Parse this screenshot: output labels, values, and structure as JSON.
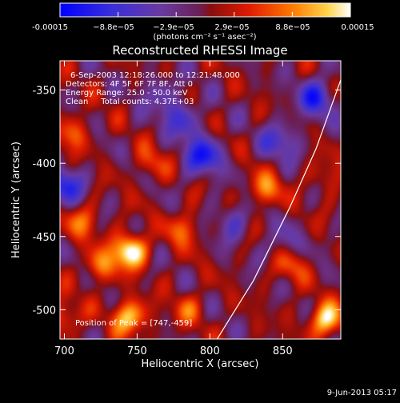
{
  "chart_data": {
    "type": "heatmap",
    "title": "Reconstructed RHESSI Image",
    "xlabel": "Heliocentric X (arcsec)",
    "ylabel": "Heliocentric Y (arcsec)",
    "xlim": [
      697,
      890
    ],
    "ylim": [
      -520,
      -330
    ],
    "x_ticks": [
      700,
      750,
      800,
      850
    ],
    "y_ticks": [
      -350,
      -400,
      -450,
      -500
    ],
    "colorbar": {
      "range": [
        -0.00015,
        0.00015
      ],
      "tick_labels": [
        "-0.00015",
        "−8.8e−05",
        "−2.9e−05",
        "2.9e−05",
        "8.8e−05",
        "0.00015"
      ],
      "units_label": "(photons cm⁻² s⁻¹ asec⁻²)"
    },
    "annotations": [
      "6-Sep-2003 12:18:26.000 to 12:21:48.000",
      "Detectors: 4F 5F 6F 7F 8F, Att 0",
      "Energy Range: 25.0 - 50.0 keV",
      "Clean     Total counts: 4.37E+03"
    ],
    "peak_label": "Position of Peak = [747,-459]",
    "peak": [
      747,
      -459
    ],
    "limb_curve": [
      [
        805,
        -520
      ],
      [
        830,
        -480
      ],
      [
        855,
        -430
      ],
      [
        873,
        -390
      ],
      [
        890,
        -343
      ]
    ],
    "hot_spots": [
      {
        "x": 745,
        "y": -460,
        "strength": 1.0
      },
      {
        "x": 745,
        "y": -505,
        "strength": 0.8
      },
      {
        "x": 838,
        "y": -418,
        "strength": 0.55
      },
      {
        "x": 880,
        "y": -507,
        "strength": 0.85
      },
      {
        "x": 712,
        "y": -440,
        "strength": 0.45
      },
      {
        "x": 725,
        "y": -470,
        "strength": 0.5
      },
      {
        "x": 760,
        "y": -400,
        "strength": 0.35
      },
      {
        "x": 705,
        "y": -380,
        "strength": 0.45
      },
      {
        "x": 700,
        "y": -505,
        "strength": 0.4
      },
      {
        "x": 782,
        "y": -445,
        "strength": 0.45
      },
      {
        "x": 855,
        "y": -470,
        "strength": 0.4
      },
      {
        "x": 785,
        "y": -500,
        "strength": 0.35
      },
      {
        "x": 880,
        "y": -410,
        "strength": 0.25
      }
    ],
    "cold_spots": [
      {
        "x": 795,
        "y": -395,
        "strength": 0.9
      },
      {
        "x": 780,
        "y": -370,
        "strength": 0.6
      },
      {
        "x": 873,
        "y": -355,
        "strength": 0.8
      },
      {
        "x": 848,
        "y": -385,
        "strength": 0.6
      },
      {
        "x": 815,
        "y": -440,
        "strength": 0.45
      },
      {
        "x": 700,
        "y": -415,
        "strength": 0.8
      },
      {
        "x": 765,
        "y": -352,
        "strength": 0.4
      },
      {
        "x": 850,
        "y": -455,
        "strength": 0.35
      }
    ]
  },
  "footer": {
    "date": "9-Jun-2013 05:17"
  },
  "colors": {
    "background": "#000000",
    "text": "#ffffff"
  }
}
